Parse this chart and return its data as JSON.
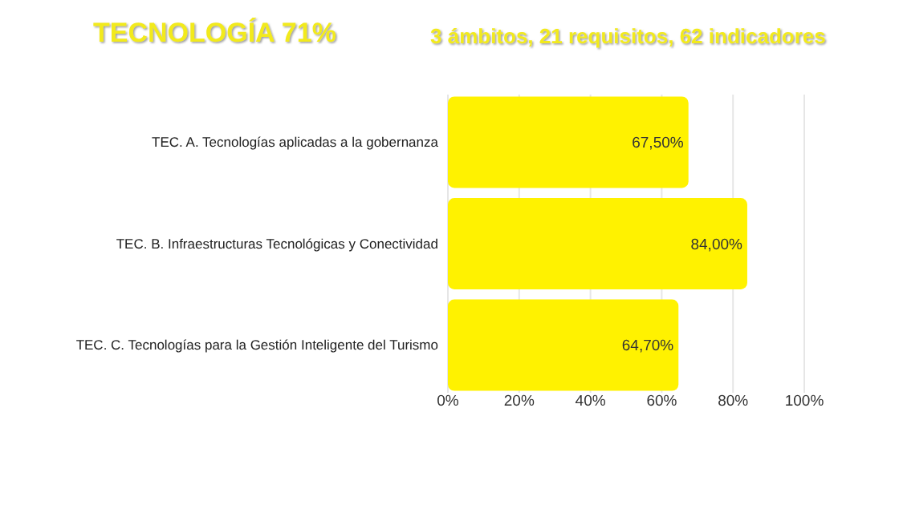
{
  "chart_data": {
    "type": "bar",
    "orientation": "horizontal",
    "title": "TECNOLOGÍA 71%",
    "subtitle": "3 ámbitos, 21 requisitos, 62 indicadores",
    "categories": [
      "TEC. A. Tecnologías aplicadas a la gobernanza",
      "TEC. B. Infraestructuras Tecnológicas y Conectividad",
      "TEC. C. Tecnologías para la Gestión Inteligente del Turismo"
    ],
    "values": [
      67.5,
      84,
      64.7
    ],
    "value_labels": [
      "67,50%",
      "84,00%",
      "64,70%"
    ],
    "color": "#fff200",
    "xlim": [
      0,
      100
    ],
    "xticks": [
      {
        "value": 0,
        "label": "0%"
      },
      {
        "value": 20,
        "label": "20%"
      },
      {
        "value": 40,
        "label": "40%"
      },
      {
        "value": 60,
        "label": "60%"
      },
      {
        "value": 80,
        "label": "80%"
      },
      {
        "value": 100,
        "label": "100%"
      }
    ],
    "grid": "x"
  }
}
